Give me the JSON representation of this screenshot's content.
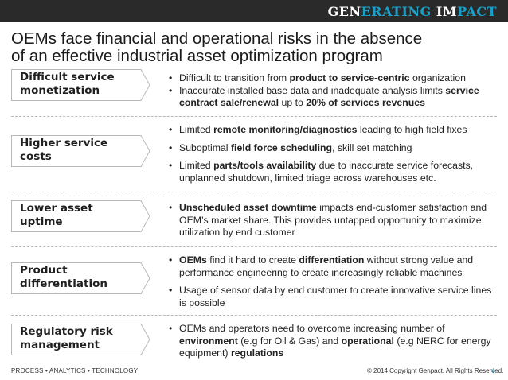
{
  "header": {
    "brand_a": "GEN",
    "brand_b": "ERATING ",
    "brand_c": "IM",
    "brand_d": "PACT"
  },
  "slide": {
    "title_line1": "OEMs face financial and operational risks in the absence",
    "title_line2": "of an effective industrial asset optimization program"
  },
  "rows": [
    {
      "label_line1": "Difficult service",
      "label_line2": "monetization",
      "bullets": [
        [
          {
            "t": "Difficult to transition from "
          },
          {
            "t": "product to service-centric",
            "b": true
          },
          {
            "t": " organization"
          }
        ],
        [
          {
            "t": "Inaccurate installed base data and inadequate analysis limits "
          },
          {
            "t": "service contract sale/renewal",
            "b": true
          },
          {
            "t": "  up to "
          },
          {
            "t": "20% of services revenues",
            "b": true
          }
        ]
      ]
    },
    {
      "label_line1": "Higher service",
      "label_line2": "costs",
      "bullets": [
        [
          {
            "t": "Limited "
          },
          {
            "t": "remote monitoring/diagnostics",
            "b": true
          },
          {
            "t": " leading to high field fixes"
          }
        ],
        [
          {
            "t": "Suboptimal "
          },
          {
            "t": "field force scheduling",
            "b": true
          },
          {
            "t": ", skill set matching"
          }
        ],
        [
          {
            "t": "Limited "
          },
          {
            "t": "parts/tools  availability",
            "b": true
          },
          {
            "t": " due to inaccurate service forecasts, unplanned shutdown, limited triage across warehouses etc."
          }
        ]
      ]
    },
    {
      "label_line1": "Lower asset",
      "label_line2": "uptime",
      "bullets": [
        [
          {
            "t": "Unscheduled asset downtime",
            "b": true
          },
          {
            "t": " impacts end-customer satisfaction and OEM’s market share. This provides untapped opportunity to maximize utilization by end customer"
          }
        ]
      ]
    },
    {
      "label_line1": "Product",
      "label_line2": "differentiation",
      "bullets": [
        [
          {
            "t": "OEMs",
            "b": true
          },
          {
            "t": " find it hard to create "
          },
          {
            "t": "differentiation",
            "b": true
          },
          {
            "t": " without strong value and performance engineering to create increasingly reliable machines"
          }
        ],
        [
          {
            "t": "Usage of sensor data by end customer to create innovative service lines is possible"
          }
        ]
      ]
    },
    {
      "label_line1": "Regulatory risk",
      "label_line2": "management",
      "bullets": [
        [
          {
            "t": "OEMs and operators need to overcome increasing number of "
          },
          {
            "t": "environment",
            "b": true
          },
          {
            "t": " (e.g for Oil & Gas) and "
          },
          {
            "t": "operational",
            "b": true
          },
          {
            "t": " (e.g NERC for energy equipment) "
          },
          {
            "t": "regulations",
            "b": true
          }
        ]
      ]
    }
  ],
  "footer": {
    "tagline": "PROCESS • ANALYTICS • TECHNOLOGY",
    "copyright": "© 2014 Copyright Genpact. All Rights Reserved.",
    "page": "4"
  },
  "colors": {
    "top_bar": "#2a2a2a",
    "brand_accent": "#1aa0c8",
    "arrow_border": "#b8b8b8",
    "page_number": "#2a8ab0"
  }
}
